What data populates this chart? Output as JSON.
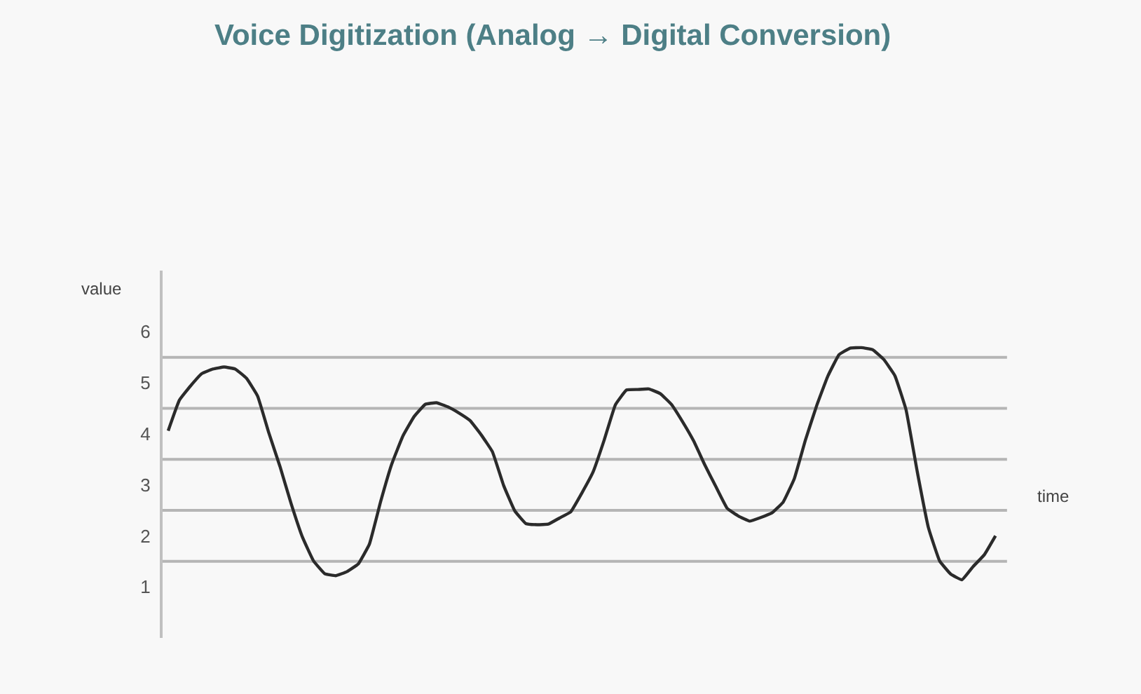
{
  "chart_data": {
    "type": "line",
    "title": "Voice Digitization (Analog → Digital Conversion)",
    "xlabel": "time",
    "ylabel": "value",
    "categories": [
      null,
      null,
      null,
      null,
      null,
      null,
      null,
      null,
      null,
      null,
      null,
      null,
      null,
      null,
      null,
      null,
      null,
      null,
      null,
      null,
      null,
      null,
      null,
      null,
      null,
      null,
      null,
      null,
      null,
      null,
      null,
      null,
      null,
      null,
      null,
      null,
      null,
      null,
      null,
      null,
      null,
      null,
      null,
      null,
      null,
      null,
      null,
      null,
      null,
      null,
      null,
      null,
      null,
      null,
      null,
      null,
      null,
      null,
      null,
      null,
      null,
      null,
      null,
      null,
      null,
      null,
      null,
      null,
      null,
      null,
      null,
      null,
      null,
      null,
      null
    ],
    "series": [
      {
        "color": "#2b2b2b",
        "values": [
          4.06,
          4.66,
          4.94,
          5.18,
          5.27,
          5.31,
          5.27,
          5.09,
          4.74,
          4.02,
          3.36,
          2.63,
          1.98,
          1.51,
          1.26,
          1.22,
          1.3,
          1.45,
          1.84,
          2.67,
          3.41,
          3.96,
          4.34,
          4.58,
          4.61,
          4.53,
          4.41,
          4.26,
          3.98,
          3.65,
          2.99,
          2.49,
          2.24,
          2.22,
          2.23,
          2.35,
          2.47,
          2.84,
          3.25,
          3.88,
          4.57,
          4.86,
          4.87,
          4.88,
          4.79,
          4.58,
          4.24,
          3.86,
          3.39,
          2.96,
          2.54,
          2.39,
          2.29,
          2.36,
          2.45,
          2.66,
          3.12,
          3.88,
          4.55,
          5.13,
          5.55,
          5.68,
          5.69,
          5.65,
          5.46,
          5.14,
          4.47,
          3.26,
          2.16,
          1.51,
          1.25,
          1.14,
          1.4,
          1.63,
          2.0
        ]
      }
    ],
    "ylim": [
      0,
      7.2
    ],
    "yticks": [
      1,
      2,
      3,
      4,
      5,
      6
    ],
    "ref_lines": [
      {
        "axis": "y",
        "value": 5.5,
        "label": null,
        "color": "#b5b5b5"
      },
      {
        "axis": "y",
        "value": 4.5,
        "label": null,
        "color": "#b5b5b5"
      },
      {
        "axis": "y",
        "value": 3.5,
        "label": null,
        "color": "#b5b5b5"
      },
      {
        "axis": "y",
        "value": 2.5,
        "label": null,
        "color": "#b5b5b5"
      },
      {
        "axis": "y",
        "value": 1.5,
        "label": null,
        "color": "#b5b5b5"
      }
    ],
    "grid": false,
    "marker": "none",
    "line_style": "solid",
    "tick_labels": "y"
  }
}
